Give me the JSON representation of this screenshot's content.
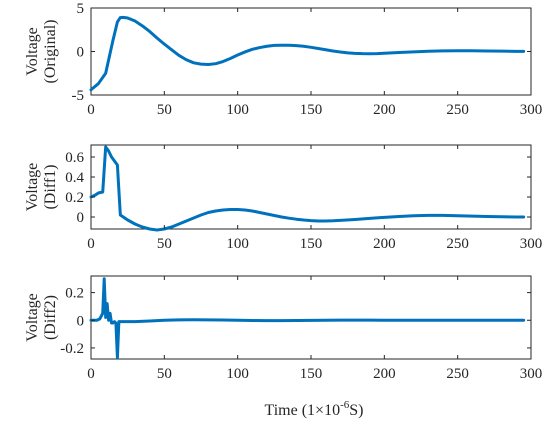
{
  "chart_data": [
    {
      "type": "line",
      "ylabel": [
        "Voltage",
        "(Original)"
      ],
      "xlim": [
        0,
        300
      ],
      "ylim": [
        -5,
        5
      ],
      "xticks": [
        0,
        50,
        100,
        150,
        200,
        250,
        300
      ],
      "yticks": [
        -5,
        0,
        5
      ],
      "xtick_labels": [
        "0",
        "50",
        "100",
        "150",
        "200",
        "250",
        "300"
      ],
      "ytick_labels": [
        "-5",
        "0",
        "5"
      ],
      "grid": false,
      "series": [
        {
          "color": "#0072BD",
          "x": [
            0,
            5,
            10,
            15,
            18,
            20,
            22,
            25,
            30,
            35,
            40,
            45,
            50,
            55,
            60,
            65,
            70,
            75,
            80,
            85,
            90,
            95,
            100,
            105,
            110,
            115,
            120,
            125,
            130,
            135,
            140,
            145,
            150,
            155,
            160,
            165,
            170,
            175,
            180,
            185,
            190,
            195,
            200,
            210,
            220,
            230,
            240,
            250,
            260,
            270,
            280,
            290,
            295
          ],
          "y": [
            -4.4,
            -3.7,
            -2.5,
            1.3,
            3.4,
            3.9,
            3.92,
            3.85,
            3.5,
            2.95,
            2.3,
            1.55,
            0.85,
            0.2,
            -0.45,
            -0.95,
            -1.3,
            -1.45,
            -1.5,
            -1.4,
            -1.15,
            -0.8,
            -0.4,
            -0.05,
            0.25,
            0.45,
            0.6,
            0.7,
            0.72,
            0.72,
            0.68,
            0.6,
            0.48,
            0.34,
            0.2,
            0.06,
            -0.06,
            -0.16,
            -0.22,
            -0.25,
            -0.26,
            -0.24,
            -0.2,
            -0.12,
            -0.04,
            0.03,
            0.07,
            0.09,
            0.08,
            0.06,
            0.04,
            0.02,
            0.01
          ]
        }
      ]
    },
    {
      "type": "line",
      "ylabel": [
        "Voltage",
        "(Diff1)"
      ],
      "xlim": [
        0,
        300
      ],
      "ylim": [
        -0.12,
        0.72
      ],
      "xticks": [
        0,
        50,
        100,
        150,
        200,
        250,
        300
      ],
      "yticks": [
        0,
        0.2,
        0.4,
        0.6
      ],
      "xtick_labels": [
        "0",
        "50",
        "100",
        "150",
        "200",
        "250",
        "300"
      ],
      "ytick_labels": [
        "0",
        "0.2",
        "0.4",
        "0.6"
      ],
      "grid": false,
      "series": [
        {
          "color": "#0072BD",
          "x": [
            0,
            3,
            5,
            8,
            10,
            12,
            14,
            16,
            18,
            20,
            25,
            30,
            35,
            40,
            45,
            50,
            55,
            60,
            65,
            70,
            75,
            80,
            85,
            90,
            95,
            100,
            105,
            110,
            115,
            120,
            125,
            130,
            135,
            140,
            145,
            150,
            155,
            160,
            165,
            170,
            180,
            190,
            200,
            210,
            220,
            230,
            240,
            250,
            260,
            270,
            280,
            290,
            295
          ],
          "y": [
            0.2,
            0.22,
            0.24,
            0.25,
            0.7,
            0.66,
            0.6,
            0.56,
            0.52,
            0.02,
            -0.03,
            -0.07,
            -0.1,
            -0.12,
            -0.13,
            -0.12,
            -0.1,
            -0.07,
            -0.04,
            -0.01,
            0.02,
            0.045,
            0.06,
            0.07,
            0.075,
            0.075,
            0.07,
            0.06,
            0.045,
            0.03,
            0.015,
            0.0,
            -0.012,
            -0.022,
            -0.03,
            -0.036,
            -0.04,
            -0.04,
            -0.038,
            -0.034,
            -0.025,
            -0.014,
            -0.004,
            0.005,
            0.012,
            0.016,
            0.016,
            0.013,
            0.009,
            0.005,
            0.002,
            0.0,
            0.0
          ]
        }
      ]
    },
    {
      "type": "line",
      "xlabel_text": "Time (1×10",
      "xlabel_exp": "-6",
      "xlabel_unit": "S)",
      "ylabel": [
        "Voltage",
        "(Diff2)"
      ],
      "xlim": [
        0,
        300
      ],
      "ylim": [
        -0.28,
        0.32
      ],
      "xticks": [
        0,
        50,
        100,
        150,
        200,
        250,
        300
      ],
      "yticks": [
        -0.2,
        0,
        0.2
      ],
      "xtick_labels": [
        "0",
        "50",
        "100",
        "150",
        "200",
        "250",
        "300"
      ],
      "ytick_labels": [
        "-0.2",
        "0",
        "0.2"
      ],
      "grid": false,
      "series": [
        {
          "color": "#0072BD",
          "x": [
            0,
            4,
            6,
            8,
            9,
            10,
            11,
            12,
            13,
            14,
            15,
            16,
            17,
            18,
            19,
            20,
            30,
            40,
            50,
            60,
            70,
            80,
            90,
            100,
            110,
            120,
            130,
            140,
            150,
            160,
            170,
            180,
            190,
            200,
            220,
            240,
            260,
            280,
            295
          ],
          "y": [
            0,
            0,
            0.01,
            0.05,
            0.3,
            0.02,
            0.12,
            0.0,
            0.05,
            -0.02,
            -0.02,
            -0.01,
            -0.02,
            -0.27,
            -0.01,
            -0.01,
            -0.01,
            -0.005,
            0.0,
            0.003,
            0.004,
            0.003,
            0.002,
            0.0,
            -0.002,
            -0.003,
            -0.003,
            -0.002,
            -0.001,
            0.0,
            0.001,
            0.001,
            0.001,
            0.0,
            0.0,
            0.0,
            0.0,
            0.0,
            0.0
          ]
        }
      ]
    }
  ]
}
